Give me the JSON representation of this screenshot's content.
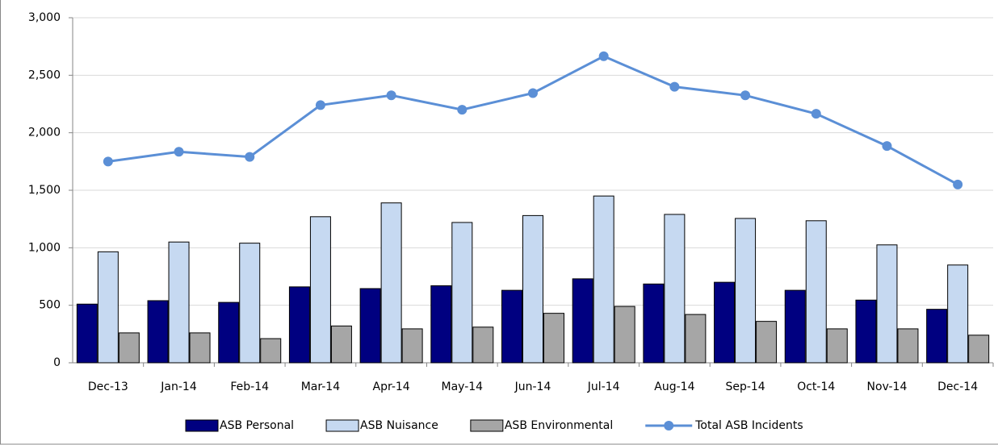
{
  "chart_data": {
    "type": "bar-line",
    "categories": [
      "Dec-13",
      "Jan-14",
      "Feb-14",
      "Mar-14",
      "Apr-14",
      "May-14",
      "Jun-14",
      "Jul-14",
      "Aug-14",
      "Sep-14",
      "Oct-14",
      "Nov-14",
      "Dec-14"
    ],
    "series": [
      {
        "name": "ASB Personal",
        "type": "bar",
        "color": "#000080",
        "values": [
          510,
          540,
          525,
          660,
          645,
          670,
          630,
          730,
          685,
          700,
          630,
          545,
          465
        ]
      },
      {
        "name": "ASB Nuisance",
        "type": "bar",
        "color": "#c6d9f1",
        "values": [
          965,
          1050,
          1040,
          1270,
          1390,
          1220,
          1280,
          1450,
          1290,
          1255,
          1235,
          1025,
          850
        ]
      },
      {
        "name": "ASB Environmental",
        "type": "bar",
        "color": "#a6a6a6",
        "values": [
          260,
          260,
          210,
          320,
          295,
          310,
          430,
          490,
          420,
          360,
          295,
          295,
          240
        ]
      },
      {
        "name": "Total ASB Incidents",
        "type": "line",
        "color": "#5b8fd6",
        "values": [
          1750,
          1835,
          1790,
          2240,
          2325,
          2200,
          2345,
          2665,
          2400,
          2325,
          2165,
          1885,
          1550
        ]
      }
    ],
    "ylim": [
      0,
      3000
    ],
    "yticks": [
      0,
      500,
      {
        "value": 1000,
        "label": "1,000"
      },
      {
        "value": 1500,
        "label": "1,500"
      },
      {
        "value": 2000,
        "label": "2,000"
      },
      {
        "value": 2500,
        "label": "2,500"
      },
      {
        "value": 3000,
        "label": "3,000"
      }
    ],
    "grid": true,
    "legend": "bottom"
  }
}
